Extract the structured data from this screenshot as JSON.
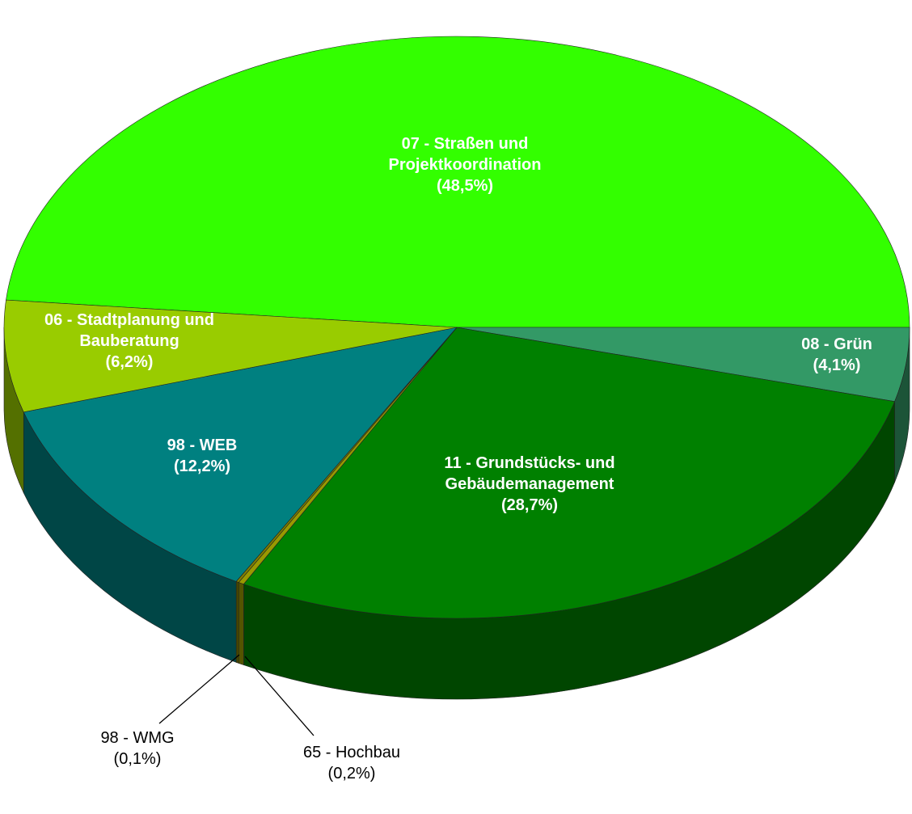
{
  "chart_data": {
    "type": "pie",
    "categories": [
      "07 - Straßen und Projektkoordination",
      "08 - Grün",
      "11 - Grundstücks- und Gebäudemanagement",
      "65 - Hochbau",
      "98 - WMG",
      "98 - WEB",
      "06 - Stadtplanung und Bauberatung"
    ],
    "values": [
      48.5,
      4.1,
      28.7,
      0.2,
      0.1,
      12.2,
      6.2
    ],
    "value_labels": [
      "(48,5%)",
      "(4,1%)",
      "(28,7%)",
      "(0,2%)",
      "(0,1%)",
      "(12,2%)",
      "(6,2%)"
    ],
    "colors": [
      "#33ff00",
      "#339966",
      "#008000",
      "#999900",
      "#808000",
      "#008080",
      "#99cc00"
    ]
  }
}
